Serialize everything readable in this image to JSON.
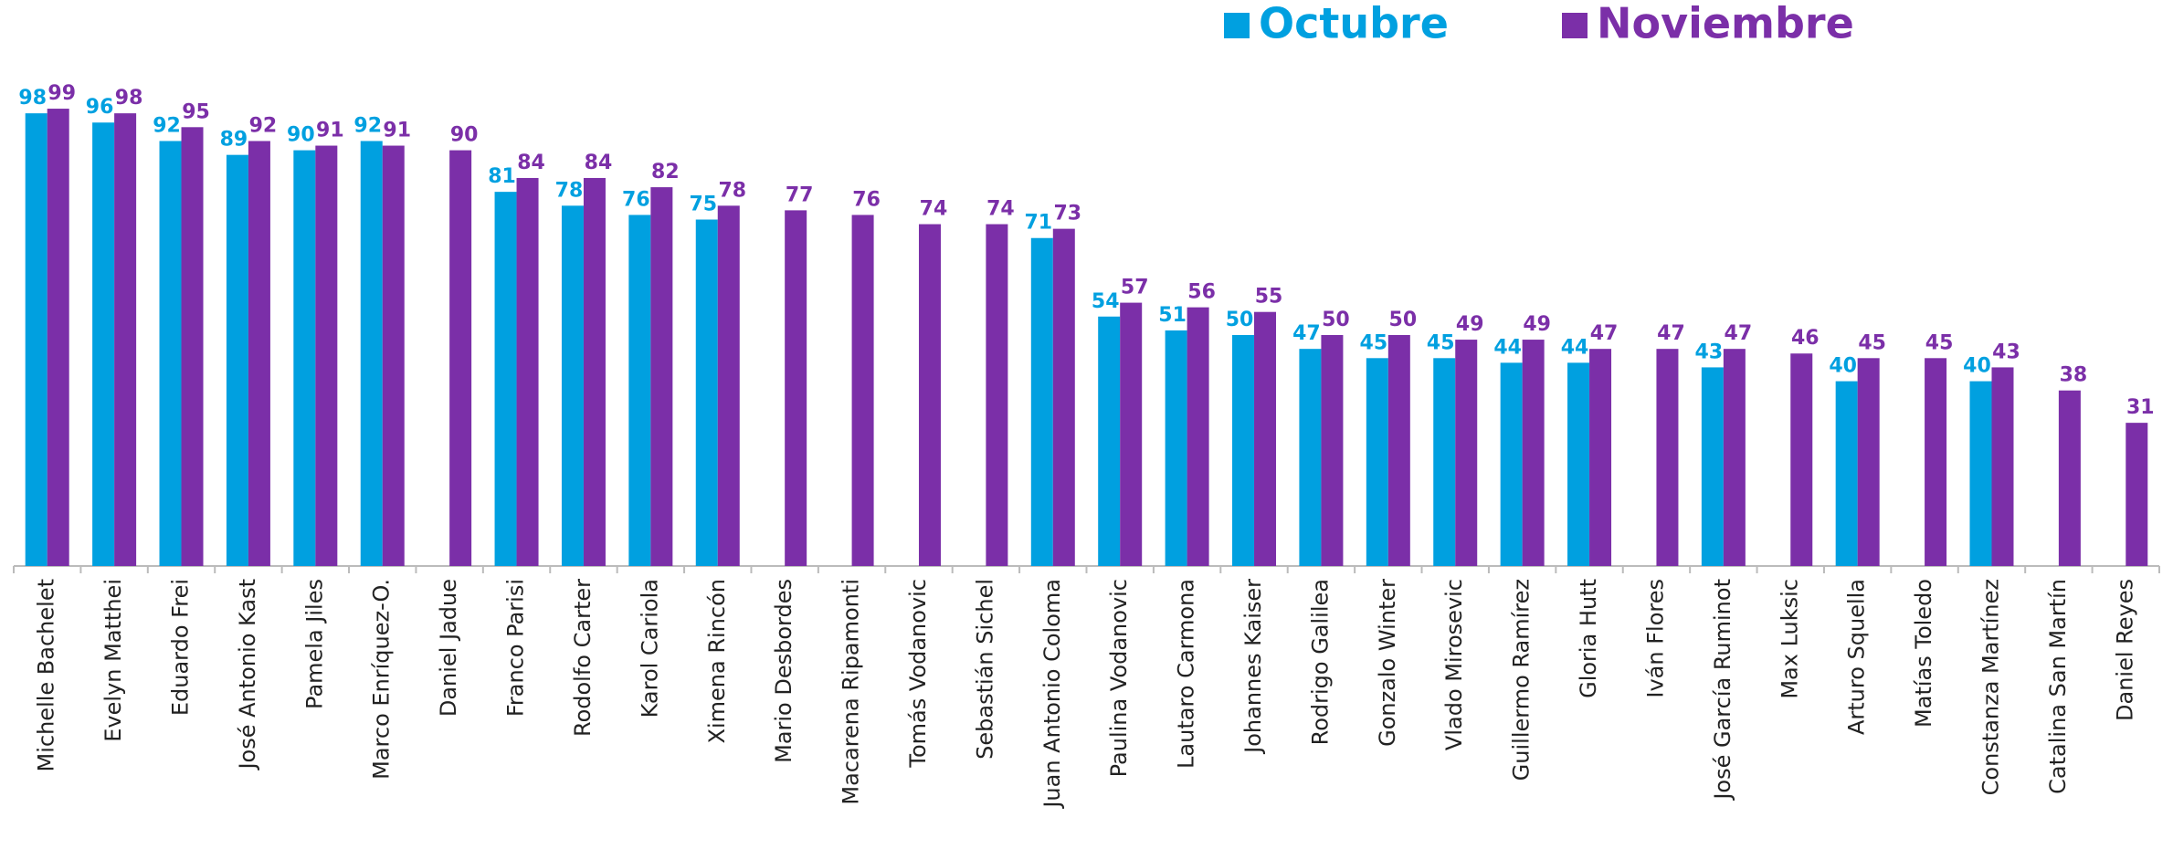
{
  "chart_data": {
    "type": "bar",
    "categories": [
      "Michelle Bachelet",
      "Evelyn Matthei",
      "Eduardo Frei",
      "José Antonio Kast",
      "Pamela Jiles",
      "Marco Enríquez-O.",
      "Daniel Jadue",
      "Franco Parisi",
      "Rodolfo Carter",
      "Karol Cariola",
      "Ximena Rincón",
      "Mario Desbordes",
      "Macarena Ripamonti",
      "Tomás Vodanovic",
      "Sebastián Sichel",
      "Juan Antonio Coloma",
      "Paulina Vodanovic",
      "Lautaro Carmona",
      "Johannes Kaiser",
      "Rodrigo Galilea",
      "Gonzalo Winter",
      "Vlado Mirosevic",
      "Guillermo Ramírez",
      "Gloria Hutt",
      "Iván Flores",
      "José García Ruminot",
      "Max Luksic",
      "Arturo Squella",
      "Matías Toledo",
      "Constanza Martínez",
      "Catalina San Martín",
      "Daniel Reyes"
    ],
    "series": [
      {
        "name": "Octubre",
        "color": "#00a0e0",
        "values": [
          98,
          96,
          92,
          89,
          90,
          92,
          null,
          81,
          78,
          76,
          75,
          null,
          null,
          null,
          null,
          71,
          54,
          51,
          50,
          47,
          45,
          45,
          44,
          44,
          null,
          43,
          null,
          40,
          null,
          40,
          null,
          null
        ]
      },
      {
        "name": "Noviembre",
        "color": "#7b2fa8",
        "values": [
          99,
          98,
          95,
          92,
          91,
          91,
          90,
          84,
          84,
          82,
          78,
          77,
          76,
          74,
          74,
          73,
          57,
          56,
          55,
          50,
          50,
          49,
          49,
          47,
          47,
          47,
          46,
          45,
          45,
          43,
          38,
          31
        ]
      }
    ],
    "ylim": [
      0,
      100
    ],
    "legend": "top"
  }
}
